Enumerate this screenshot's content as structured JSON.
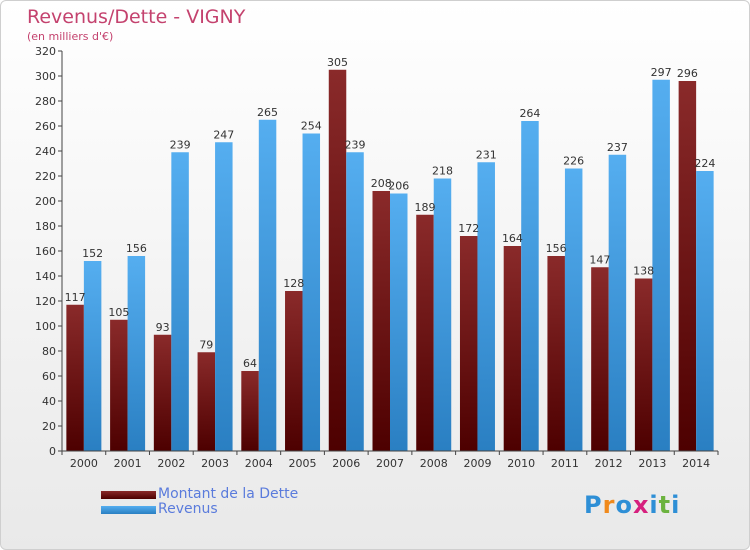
{
  "header": {
    "title": "Revenus/Dette - VIGNY",
    "subtitle": "(en milliers d'€)"
  },
  "legend": {
    "debt_label": "Montant de la Dette",
    "revenue_label": "Revenus"
  },
  "logo": {
    "text": "Proxiti",
    "letter_colors": [
      "#2e8fd6",
      "#f08a1c",
      "#2e8fd6",
      "#d6207e",
      "#2e8fd6",
      "#6cb33f",
      "#2e8fd6"
    ]
  },
  "colors": {
    "debt": "#7a1d1d",
    "debt_dark": "#4d0000",
    "revenue": "#4aa3e6",
    "revenue_dark": "#2a7fc2",
    "axis": "#444444"
  },
  "chart_data": {
    "type": "bar",
    "categories": [
      "2000",
      "2001",
      "2002",
      "2003",
      "2004",
      "2005",
      "2006",
      "2007",
      "2008",
      "2009",
      "2010",
      "2011",
      "2012",
      "2013",
      "2014"
    ],
    "series": [
      {
        "name": "Montant de la Dette",
        "values": [
          117,
          105,
          93,
          79,
          64,
          128,
          305,
          208,
          189,
          172,
          164,
          156,
          147,
          138,
          296
        ]
      },
      {
        "name": "Revenus",
        "values": [
          152,
          156,
          239,
          247,
          265,
          254,
          239,
          206,
          218,
          231,
          264,
          226,
          237,
          297,
          224
        ]
      }
    ],
    "ylim": [
      0,
      320
    ],
    "ytick_step": 20,
    "grid": false
  }
}
